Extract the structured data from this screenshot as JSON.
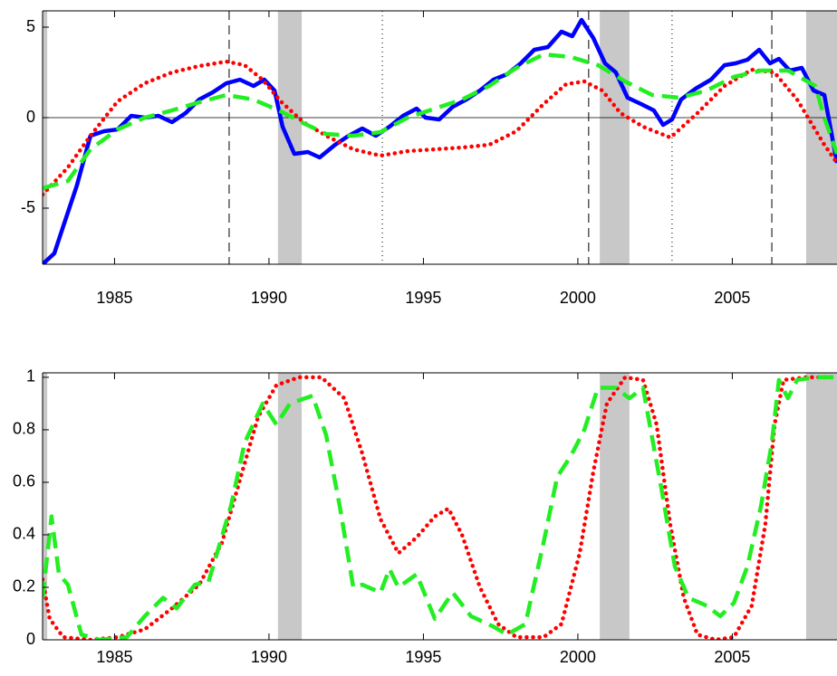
{
  "chart_data": [
    {
      "type": "line",
      "xlim": [
        1982.67,
        2008.39
      ],
      "xticks": [
        1985,
        1990,
        1995,
        2000,
        2005
      ],
      "ylim": [
        -8.1,
        5.9
      ],
      "yticks": [
        -5,
        0,
        5
      ],
      "recessions": [
        [
          1982.67,
          1982.82
        ],
        [
          1990.29,
          1991.06
        ],
        [
          2000.71,
          2001.67
        ],
        [
          2007.39,
          2008.39
        ]
      ],
      "dashed_lines": [
        1988.71,
        2000.35,
        2006.28
      ],
      "dotted_lines": [
        1993.67,
        2003.05
      ],
      "series": [
        {
          "color": "#0000ff",
          "style": "solid",
          "x": [
            1982.67,
            1983.05,
            1983.34,
            1983.78,
            1984.22,
            1984.66,
            1985.1,
            1985.54,
            1985.98,
            1986.42,
            1986.86,
            1987.3,
            1987.74,
            1988.18,
            1988.62,
            1989.06,
            1989.5,
            1989.85,
            1990.18,
            1990.44,
            1990.82,
            1991.26,
            1991.64,
            1992.14,
            1992.58,
            1993.02,
            1993.46,
            1993.9,
            1994.34,
            1994.78,
            1995.07,
            1995.51,
            1995.95,
            1996.39,
            1996.83,
            1997.27,
            1997.71,
            1998.15,
            1998.59,
            1999.03,
            1999.47,
            1999.82,
            2000.12,
            2000.5,
            2000.88,
            2001.23,
            2001.61,
            2002.05,
            2002.46,
            2002.76,
            2003.05,
            2003.34,
            2003.81,
            2004.31,
            2004.75,
            2005.1,
            2005.49,
            2005.87,
            2006.22,
            2006.51,
            2006.86,
            2007.25,
            2007.63,
            2007.98,
            2008.39
          ],
          "values": [
            -8.1,
            -7.5,
            -6,
            -3.75,
            -1,
            -0.75,
            -0.65,
            0.1,
            0,
            0.1,
            -0.25,
            0.25,
            1,
            1.4,
            1.9,
            2.1,
            1.75,
            2.1,
            1.5,
            -0.5,
            -2,
            -1.9,
            -2.2,
            -1.5,
            -1,
            -0.6,
            -1,
            -0.5,
            0.1,
            0.5,
            0,
            -0.1,
            0.6,
            1,
            1.5,
            2.1,
            2.4,
            3,
            3.75,
            3.9,
            4.75,
            4.5,
            5.4,
            4.4,
            3,
            2.5,
            1.1,
            0.75,
            0.4,
            -0.4,
            -0.1,
            1,
            1.6,
            2.1,
            2.9,
            3,
            3.2,
            3.75,
            3,
            3.25,
            2.6,
            2.75,
            1.5,
            1.25,
            -2.5
          ]
        },
        {
          "color": "#ff0000",
          "style": "dotted",
          "x": [
            1982.67,
            1983.49,
            1984.22,
            1985.1,
            1985.98,
            1986.86,
            1987.74,
            1988.62,
            1989.21,
            1989.79,
            1990.38,
            1991.11,
            1991.85,
            1992.73,
            1993.61,
            1994.49,
            1995.37,
            1996.25,
            1997.13,
            1998.01,
            1998.89,
            1999.62,
            2000.21,
            2000.79,
            2001.38,
            2002.11,
            2003.0,
            2003.87,
            2004.75,
            2005.63,
            2006.36,
            2007.1,
            2007.98,
            2008.39
          ],
          "values": [
            -4.25,
            -2.75,
            -1,
            0.9,
            1.9,
            2.5,
            2.85,
            3.1,
            2.9,
            2.1,
            0.9,
            -0.25,
            -1,
            -1.75,
            -2.1,
            -1.85,
            -1.75,
            -1.65,
            -1.5,
            -0.75,
            0.75,
            1.85,
            2,
            1.5,
            0.25,
            -0.5,
            -1.1,
            0.25,
            1.75,
            2.65,
            2.5,
            1,
            -1.5,
            -2.5
          ]
        },
        {
          "color": "#22ee22",
          "style": "dashed",
          "x": [
            1982.67,
            1983.49,
            1984.22,
            1985.1,
            1985.98,
            1986.86,
            1987.74,
            1988.62,
            1989.5,
            1990.38,
            1991.11,
            1991.85,
            1992.73,
            1993.61,
            1994.49,
            1995.37,
            1996.25,
            1997.13,
            1998.01,
            1998.89,
            1999.77,
            2000.65,
            2001.53,
            2002.41,
            2003.29,
            2004.17,
            2005.05,
            2005.93,
            2006.81,
            2007.69,
            2007.98,
            2008.39
          ],
          "values": [
            -3.9,
            -3.5,
            -1.75,
            -0.65,
            0,
            0.4,
            0.85,
            1.25,
            1,
            0.35,
            -0.3,
            -0.9,
            -1,
            -0.8,
            0,
            0.5,
            1,
            1.75,
            2.75,
            3.5,
            3.35,
            2.9,
            2,
            1.25,
            1.1,
            1.5,
            2.25,
            2.6,
            2.6,
            1.75,
            0,
            -2
          ]
        }
      ]
    },
    {
      "type": "line",
      "xlim": [
        1982.67,
        2008.39
      ],
      "xticks": [
        1985,
        1990,
        1995,
        2000,
        2005
      ],
      "ylim": [
        0,
        1.017
      ],
      "yticks": [
        0,
        0.2,
        0.4,
        0.6,
        0.8,
        1
      ],
      "recessions": [
        [
          1982.67,
          1982.82
        ],
        [
          1990.29,
          1991.06
        ],
        [
          2000.71,
          2001.67
        ],
        [
          2007.39,
          2008.39
        ]
      ],
      "series": [
        {
          "color": "#ff0000",
          "style": "dotted",
          "x": [
            1982.67,
            1982.9,
            1983.34,
            1984.22,
            1985.1,
            1985.98,
            1986.86,
            1987.74,
            1988.48,
            1989.06,
            1989.65,
            1990.24,
            1990.97,
            1991.7,
            1992.44,
            1993.02,
            1993.61,
            1994.19,
            1994.78,
            1995.37,
            1995.81,
            1996.25,
            1996.83,
            1997.42,
            1998.01,
            1998.89,
            1999.47,
            2000.06,
            2000.5,
            2000.94,
            2001.53,
            2002.11,
            2002.55,
            2002.99,
            2003.43,
            2003.87,
            2004.46,
            2005.05,
            2005.63,
            2006.07,
            2006.37,
            2006.66,
            2007.39,
            2008.39
          ],
          "values": [
            0.23,
            0.08,
            0.01,
            0,
            0.01,
            0.04,
            0.12,
            0.21,
            0.37,
            0.61,
            0.85,
            0.97,
            1,
            1,
            0.92,
            0.71,
            0.46,
            0.33,
            0.39,
            0.47,
            0.5,
            0.4,
            0.2,
            0.06,
            0.01,
            0.01,
            0.06,
            0.33,
            0.64,
            0.9,
            1,
            0.99,
            0.82,
            0.44,
            0.16,
            0.02,
            0,
            0.01,
            0.13,
            0.44,
            0.82,
            0.99,
            1,
            1
          ]
        },
        {
          "color": "#22ee22",
          "style": "dashed",
          "x": [
            1982.67,
            1982.96,
            1983.2,
            1983.49,
            1983.93,
            1984.52,
            1985.4,
            1985.98,
            1986.57,
            1987.01,
            1987.6,
            1988.04,
            1988.77,
            1989.21,
            1989.8,
            1990.24,
            1990.68,
            1991.41,
            1991.85,
            1992.29,
            1992.73,
            1993.02,
            1993.61,
            1993.9,
            1994.19,
            1994.78,
            1995.37,
            1995.95,
            1996.54,
            1997.27,
            1997.71,
            1998.3,
            1998.89,
            1999.33,
            1999.77,
            2000.21,
            2000.65,
            2001.23,
            2001.67,
            2002.11,
            2002.7,
            2003.14,
            2003.58,
            2004.17,
            2004.61,
            2005.05,
            2005.49,
            2005.93,
            2006.28,
            2006.51,
            2006.8,
            2007.1,
            2007.68,
            2008.39
          ],
          "values": [
            0.16,
            0.47,
            0.25,
            0.21,
            0.02,
            0,
            0.01,
            0.09,
            0.16,
            0.12,
            0.21,
            0.22,
            0.51,
            0.75,
            0.9,
            0.82,
            0.9,
            0.93,
            0.78,
            0.51,
            0.2,
            0.21,
            0.18,
            0.27,
            0.2,
            0.25,
            0.08,
            0.18,
            0.09,
            0.05,
            0.02,
            0.06,
            0.37,
            0.62,
            0.7,
            0.8,
            0.96,
            0.96,
            0.92,
            0.96,
            0.58,
            0.28,
            0.16,
            0.13,
            0.09,
            0.14,
            0.28,
            0.51,
            0.75,
            0.99,
            0.92,
            0.99,
            1,
            1
          ]
        }
      ]
    }
  ]
}
